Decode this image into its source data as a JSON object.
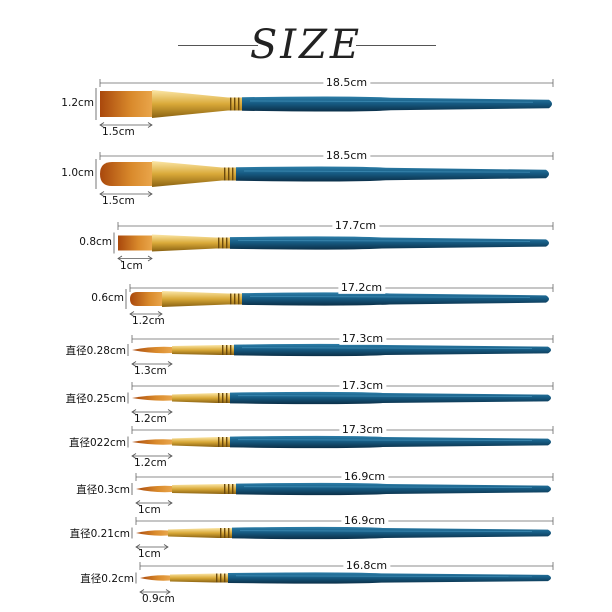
{
  "title": "SIZE",
  "colors": {
    "handle": "#175c84",
    "ferrule": "#d9a938",
    "bristles": "#c96a1c",
    "measure_line": "#555555"
  },
  "brushes": [
    {
      "length": "18.5cm",
      "tip_label": "1.2cm",
      "width_label": "1.5cm",
      "tip_shape": "flat"
    },
    {
      "length": "18.5cm",
      "tip_label": "1.0cm",
      "width_label": "1.5cm",
      "tip_shape": "filbert"
    },
    {
      "length": "17.7cm",
      "tip_label": "0.8cm",
      "width_label": "1cm",
      "tip_shape": "flat"
    },
    {
      "length": "17.2cm",
      "tip_label": "0.6cm",
      "width_label": "1.2cm",
      "tip_shape": "filbert"
    },
    {
      "length": "17.3cm",
      "tip_label": "直径0.28cm",
      "width_label": "1.3cm",
      "tip_shape": "round"
    },
    {
      "length": "17.3cm",
      "tip_label": "直径0.25cm",
      "width_label": "1.2cm",
      "tip_shape": "round"
    },
    {
      "length": "17.3cm",
      "tip_label": "直径022cm",
      "width_label": "1.2cm",
      "tip_shape": "round"
    },
    {
      "length": "16.9cm",
      "tip_label": "直径0.3cm",
      "width_label": "1cm",
      "tip_shape": "round"
    },
    {
      "length": "16.9cm",
      "tip_label": "直径0.21cm",
      "width_label": "1cm",
      "tip_shape": "round"
    },
    {
      "length": "16.8cm",
      "tip_label": "直径0.2cm",
      "width_label": "0.9cm",
      "tip_shape": "round"
    }
  ]
}
